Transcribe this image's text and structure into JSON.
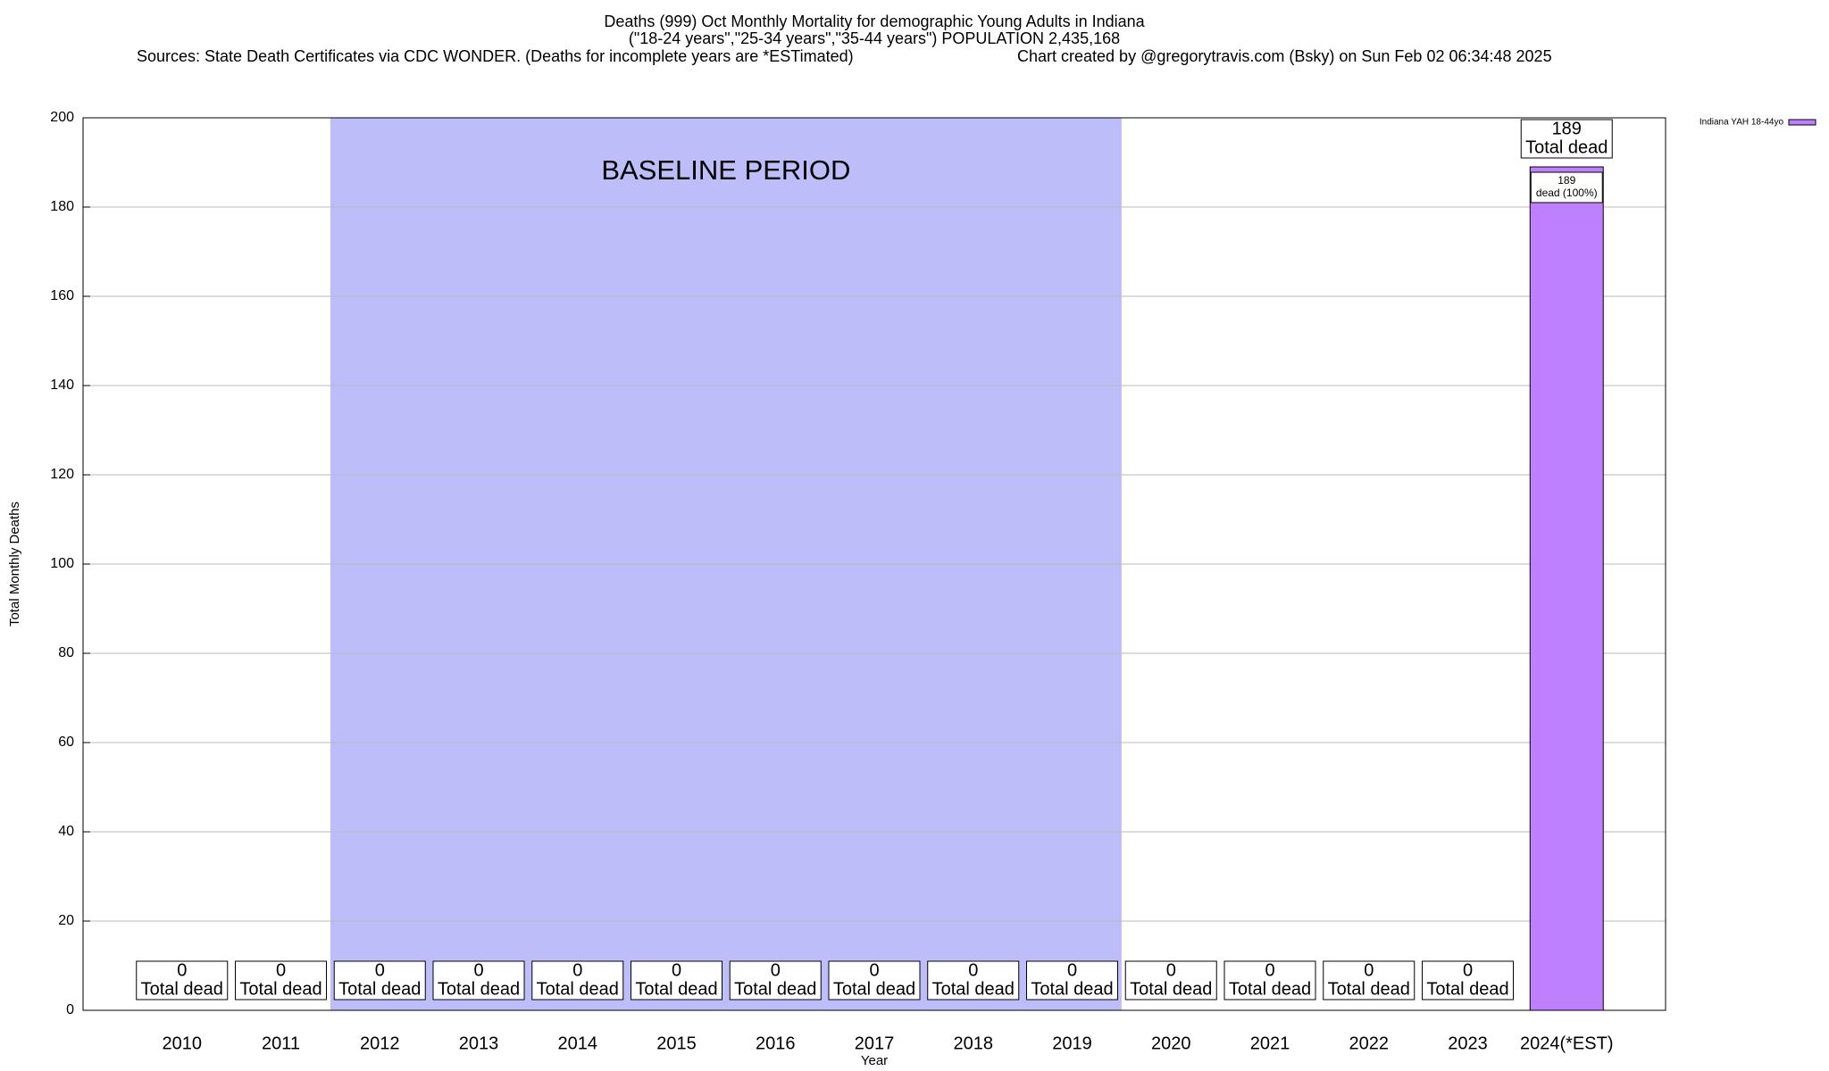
{
  "chart_data": {
    "type": "bar",
    "title": "Deaths (999) Oct Monthly Mortality for demographic Young Adults in Indiana",
    "subtitle": "(\"18-24 years\",\"25-34 years\",\"35-44 years\") POPULATION 2,435,168",
    "sources": "Sources: State Death Certificates via CDC WONDER. (Deaths for incomplete years are *ESTimated)",
    "credit": "Chart created by @gregorytravis.com (Bsky) on Sun Feb 02 06:34:48 2025",
    "x_label": "Year",
    "y_label": "Total Monthly Deaths",
    "categories": [
      "2010",
      "2011",
      "2012",
      "2013",
      "2014",
      "2015",
      "2016",
      "2017",
      "2018",
      "2019",
      "2020",
      "2021",
      "2022",
      "2023",
      "2024(*EST)"
    ],
    "series": [
      {
        "name": "Indiana YAH 18-44yo",
        "color": "#bf80ff",
        "values": [
          0,
          0,
          0,
          0,
          0,
          0,
          0,
          0,
          0,
          0,
          0,
          0,
          0,
          0,
          189
        ]
      }
    ],
    "total_label": "Total dead",
    "inner_labels": [
      null,
      null,
      null,
      null,
      null,
      null,
      null,
      null,
      null,
      null,
      null,
      null,
      null,
      null,
      "dead (100%)"
    ],
    "baseline": {
      "label": "BASELINE PERIOD",
      "start": "2012",
      "end": "2019",
      "color": "#bdbdfa"
    },
    "ylim": [
      0,
      200
    ],
    "yticks": [
      0,
      20,
      40,
      60,
      80,
      100,
      120,
      140,
      160,
      180,
      200
    ],
    "grid": true,
    "legend": "top-right"
  }
}
